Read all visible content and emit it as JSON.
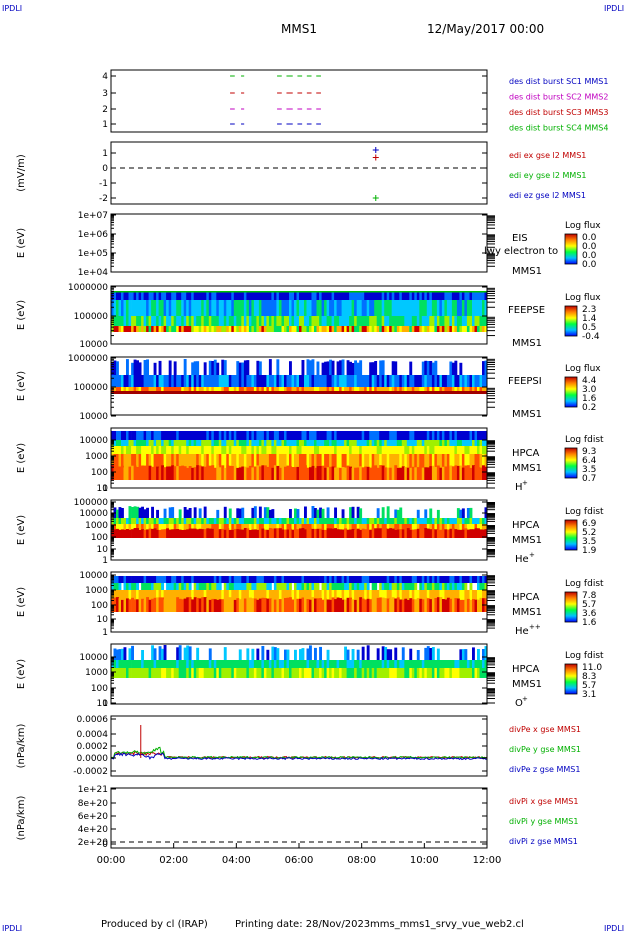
{
  "corner_labels": {
    "tl": "IPDLI",
    "tr": "IPDLI",
    "bl": "IPDLI",
    "br": "IPDLI"
  },
  "header": {
    "spacecraft": "MMS1",
    "date": "12/May/2017 00:00"
  },
  "footer": {
    "produced_by": "Produced by cl (IRAP)",
    "printing_date": "Printing date: 28/Nov/2023",
    "filename": "mms_mms1_srvy_vue_web2.cl"
  },
  "chart_data": {
    "type": "multi-panel",
    "x_ticks": [
      "00:00",
      "02:00",
      "04:00",
      "06:00",
      "08:00",
      "10:00",
      "12:00"
    ],
    "xlim_hours": [
      0,
      12
    ],
    "panels": [
      {
        "id": "des",
        "ylabel": "",
        "yticks": [
          "4",
          "3",
          "2",
          "1"
        ],
        "legend": [
          {
            "text": "des dist burst SC1 MMS1",
            "color": "#0000c0"
          },
          {
            "text": "des dist burst SC2 MMS2",
            "color": "#c000c0"
          },
          {
            "text": "des dist burst SC3 MMS3",
            "color": "#c00000"
          },
          {
            "text": "des dist burst SC4 MMS4",
            "color": "#00b000"
          }
        ],
        "burst_intervals_hours": [
          [
            3.8,
            3.95
          ],
          [
            4.15,
            4.25
          ],
          [
            5.3,
            5.45
          ],
          [
            5.6,
            5.8
          ],
          [
            5.95,
            6.1
          ],
          [
            6.25,
            6.4
          ],
          [
            6.55,
            6.7
          ]
        ]
      },
      {
        "id": "edi",
        "ylabel": "(mV/m)",
        "yticks": [
          "1",
          "0",
          "-1",
          "-2"
        ],
        "legend": [
          {
            "text": "edi ex gse l2 MMS1",
            "color": "#c00000"
          },
          {
            "text": "edi ey gse l2 MMS1",
            "color": "#00b000"
          },
          {
            "text": "edi ez gse l2 MMS1",
            "color": "#0000c0"
          }
        ],
        "points": [
          {
            "t": 8.45,
            "v": 1.2,
            "color": "#0000c0"
          },
          {
            "t": 8.45,
            "v": 0.7,
            "color": "#c00000"
          },
          {
            "t": 8.45,
            "v": -2.0,
            "color": "#00b000"
          }
        ]
      },
      {
        "id": "eis",
        "ylabel": "E (eV)",
        "yticks": [
          "1e+07",
          "1e+06",
          "1e+05",
          "1e+04"
        ],
        "inst": "EIS",
        "inst2": "MMS1",
        "overlap_text": "lwy electron to",
        "cbar_title": "Log flux",
        "cbar_ticks": [
          "0.0",
          "0.0",
          "0.0",
          "0.0"
        ]
      },
      {
        "id": "feepse",
        "ylabel": "E (eV)",
        "yticks": [
          "1000000",
          "100000",
          "10000"
        ],
        "inst": "FEEPSE",
        "inst2": "MMS1",
        "cbar_title": "Log flux",
        "cbar_ticks": [
          "2.3",
          "1.4",
          "0.5",
          "-0.4"
        ]
      },
      {
        "id": "feepsi",
        "ylabel": "E (eV)",
        "yticks": [
          "1000000",
          "100000",
          "10000"
        ],
        "inst": "FEEPSI",
        "inst2": "MMS1",
        "cbar_title": "Log flux",
        "cbar_ticks": [
          "4.4",
          "3.0",
          "1.6",
          "0.2"
        ]
      },
      {
        "id": "hpca_h",
        "ylabel": "E (eV)",
        "yticks": [
          "10000",
          "1000",
          "100",
          "10",
          "1"
        ],
        "inst": "HPCA",
        "inst2": "MMS1",
        "species": "H",
        "charge": "+",
        "cbar_title": "Log fdist",
        "cbar_ticks": [
          "9.3",
          "6.4",
          "3.5",
          "0.7"
        ]
      },
      {
        "id": "hpca_he",
        "ylabel": "E (eV)",
        "yticks": [
          "100000",
          "10000",
          "1000",
          "100",
          "10",
          "1"
        ],
        "inst": "HPCA",
        "inst2": "MMS1",
        "species": "He",
        "charge": "+",
        "cbar_title": "Log fdist",
        "cbar_ticks": [
          "6.9",
          "5.2",
          "3.5",
          "1.9"
        ]
      },
      {
        "id": "hpca_hepp",
        "ylabel": "E (eV)",
        "yticks": [
          "10000",
          "1000",
          "100",
          "10",
          "1"
        ],
        "inst": "HPCA",
        "inst2": "MMS1",
        "species": "He",
        "charge": "++",
        "cbar_title": "Log fdist",
        "cbar_ticks": [
          "7.8",
          "5.7",
          "3.6",
          "1.6"
        ]
      },
      {
        "id": "hpca_o",
        "ylabel": "E (eV)",
        "yticks": [
          "10000",
          "1000",
          "100",
          "10",
          "1"
        ],
        "inst": "HPCA",
        "inst2": "MMS1",
        "species": "O",
        "charge": "+",
        "cbar_title": "Log fdist",
        "cbar_ticks": [
          "11.0",
          "8.3",
          "5.7",
          "3.1"
        ]
      },
      {
        "id": "divpe",
        "ylabel": "(nPa/km)",
        "yticks": [
          "0.0006",
          "0.0004",
          "0.0002",
          "0.0000",
          "-0.0002"
        ],
        "legend": [
          {
            "text": "divPe x gse MMS1",
            "color": "#c00000"
          },
          {
            "text": "divPe y gse MMS1",
            "color": "#00b000"
          },
          {
            "text": "divPe z gse MMS1",
            "color": "#0000c0"
          }
        ]
      },
      {
        "id": "divpi",
        "ylabel": "(nPa/km)",
        "yticks": [
          "1e+21",
          "8e+20",
          "6e+20",
          "4e+20",
          "2e+20",
          "0"
        ],
        "legend": [
          {
            "text": "divPi x gse MMS1",
            "color": "#c00000"
          },
          {
            "text": "divPi y gse MMS1",
            "color": "#00b000"
          },
          {
            "text": "divPi z gse MMS1",
            "color": "#0000c0"
          }
        ]
      }
    ]
  }
}
